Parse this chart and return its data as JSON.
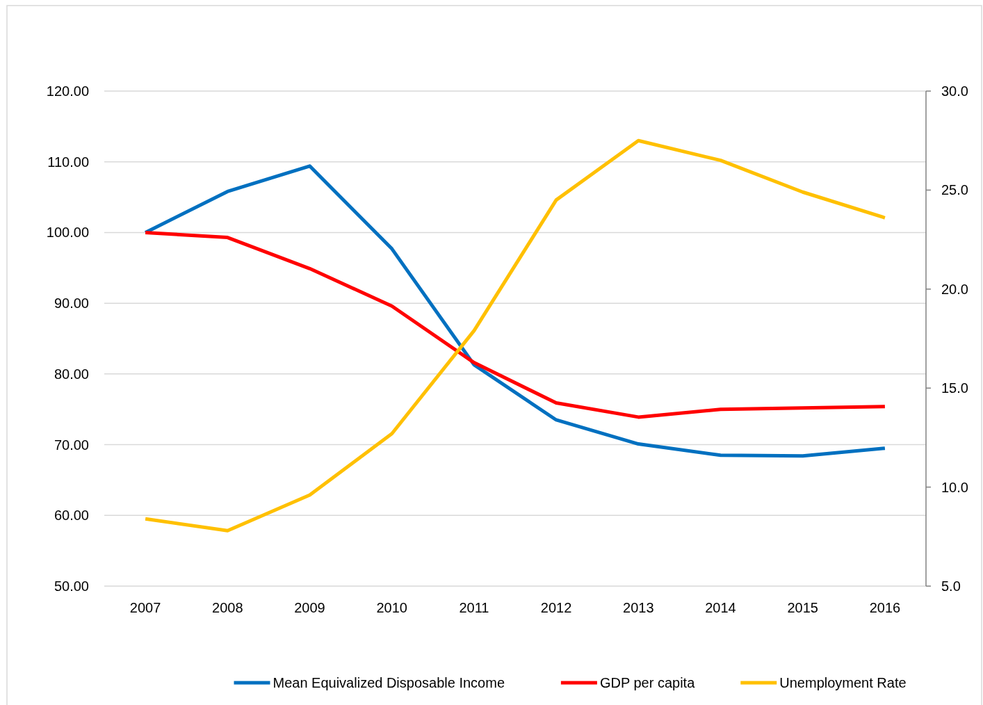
{
  "chart_data": {
    "type": "line",
    "categories": [
      "2007",
      "2008",
      "2009",
      "2010",
      "2011",
      "2012",
      "2013",
      "2014",
      "2015",
      "2016"
    ],
    "series": [
      {
        "name": "Mean Equivalized Disposable Income",
        "color": "#0070c0",
        "values": [
          100,
          105.8,
          109.4,
          97.7,
          81.3,
          73.5,
          70.1,
          68.5,
          68.4,
          69.5
        ]
      },
      {
        "name": "GDP per capita",
        "color": "#ff0000",
        "values": [
          100,
          99.3,
          94.9,
          89.6,
          81.6,
          75.9,
          73.9,
          75.0,
          75.2,
          75.4
        ]
      },
      {
        "name": "Unemployment Rate",
        "color": "#ffc000",
        "axis": "y2",
        "values": [
          8.4,
          7.8,
          9.6,
          12.7,
          17.9,
          24.5,
          27.5,
          26.5,
          24.9,
          23.6
        ]
      }
    ],
    "ylim": [
      50,
      120
    ],
    "yticks": [
      {
        "value": 50,
        "label": "50.00"
      },
      {
        "value": 60,
        "label": "60.00"
      },
      {
        "value": 70,
        "label": "70.00"
      },
      {
        "value": 80,
        "label": "80.00"
      },
      {
        "value": 90,
        "label": "90.00"
      },
      {
        "value": 100,
        "label": "100.00"
      },
      {
        "value": 110,
        "label": "110.00"
      },
      {
        "value": 120,
        "label": "120.00"
      }
    ],
    "y2lim": [
      5,
      30
    ],
    "y2ticks": [
      {
        "value": 5,
        "label": "5.0"
      },
      {
        "value": 10,
        "label": "10.0"
      },
      {
        "value": 15,
        "label": "15.0"
      },
      {
        "value": 20,
        "label": "20.0"
      },
      {
        "value": 25,
        "label": "25.0"
      },
      {
        "value": 30,
        "label": "30.0"
      }
    ],
    "grid": "y",
    "legend": "bottom",
    "marker": "none",
    "line_style": "solid"
  }
}
